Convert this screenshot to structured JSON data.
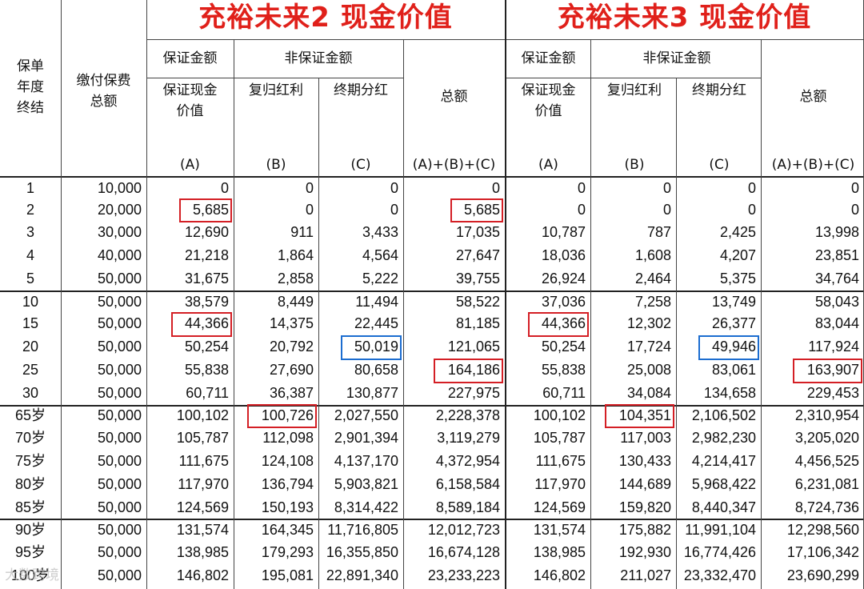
{
  "titles": [
    "充裕未来2 现金价值",
    "充裕未来3 现金价值"
  ],
  "headers": {
    "year_col": [
      "保单",
      "年度",
      "终结"
    ],
    "premium_col": [
      "缴付保费",
      "总额"
    ],
    "guaranteed_amount": "保证金额",
    "non_guaranteed_amount": "非保证金额",
    "guaranteed_cash_value": [
      "保证现金",
      "价值"
    ],
    "reversionary_bonus": "复归红利",
    "terminal_bonus": "终期分红",
    "total": "总额",
    "labels": [
      "(A)",
      "(B)",
      "(C)",
      "(A)+(B)+(C)"
    ]
  },
  "rows": [
    [
      "1",
      "10,000",
      "0",
      "0",
      "0",
      "0",
      "0",
      "0",
      "0",
      "0"
    ],
    [
      "2",
      "20,000",
      "5,685",
      "0",
      "0",
      "5,685",
      "0",
      "0",
      "0",
      "0"
    ],
    [
      "3",
      "30,000",
      "12,690",
      "911",
      "3,433",
      "17,035",
      "10,787",
      "787",
      "2,425",
      "13,998"
    ],
    [
      "4",
      "40,000",
      "21,218",
      "1,864",
      "4,564",
      "27,647",
      "18,036",
      "1,608",
      "4,207",
      "23,851"
    ],
    [
      "5",
      "50,000",
      "31,675",
      "2,858",
      "5,222",
      "39,755",
      "26,924",
      "2,464",
      "5,375",
      "34,764"
    ],
    [
      "10",
      "50,000",
      "38,579",
      "8,449",
      "11,494",
      "58,522",
      "37,036",
      "7,258",
      "13,749",
      "58,043"
    ],
    [
      "15",
      "50,000",
      "44,366",
      "14,375",
      "22,445",
      "81,185",
      "44,366",
      "12,302",
      "26,377",
      "83,044"
    ],
    [
      "20",
      "50,000",
      "50,254",
      "20,792",
      "50,019",
      "121,065",
      "50,254",
      "17,724",
      "49,946",
      "117,924"
    ],
    [
      "25",
      "50,000",
      "55,838",
      "27,690",
      "80,658",
      "164,186",
      "55,838",
      "25,008",
      "83,061",
      "163,907"
    ],
    [
      "30",
      "50,000",
      "60,711",
      "36,387",
      "130,877",
      "227,975",
      "60,711",
      "34,084",
      "134,658",
      "229,453"
    ],
    [
      "65岁",
      "50,000",
      "100,102",
      "100,726",
      "2,027,550",
      "2,228,378",
      "100,102",
      "104,351",
      "2,106,502",
      "2,310,954"
    ],
    [
      "70岁",
      "50,000",
      "105,787",
      "112,098",
      "2,901,394",
      "3,119,279",
      "105,787",
      "117,003",
      "2,982,230",
      "3,205,020"
    ],
    [
      "75岁",
      "50,000",
      "111,675",
      "124,108",
      "4,137,170",
      "4,372,954",
      "111,675",
      "130,433",
      "4,214,417",
      "4,456,525"
    ],
    [
      "80岁",
      "50,000",
      "117,970",
      "136,794",
      "5,903,821",
      "6,158,584",
      "117,970",
      "144,689",
      "5,968,422",
      "6,231,081"
    ],
    [
      "85岁",
      "50,000",
      "124,569",
      "150,193",
      "8,314,422",
      "8,589,184",
      "124,569",
      "159,820",
      "8,440,347",
      "8,724,736"
    ],
    [
      "90岁",
      "50,000",
      "131,574",
      "164,345",
      "11,716,805",
      "12,012,723",
      "131,574",
      "175,882",
      "11,991,104",
      "12,298,560"
    ],
    [
      "95岁",
      "50,000",
      "138,985",
      "179,293",
      "16,355,850",
      "16,674,128",
      "138,985",
      "192,930",
      "16,774,426",
      "17,106,342"
    ],
    [
      "100岁",
      "50,000",
      "146,802",
      "195,081",
      "22,891,340",
      "23,233,223",
      "146,802",
      "211,027",
      "23,332,470",
      "23,690,299"
    ]
  ],
  "watermark": "大数跨境",
  "colors": {
    "title": "#e0201a",
    "highlight_red": "#d41f25",
    "highlight_blue": "#1c6dd0"
  }
}
